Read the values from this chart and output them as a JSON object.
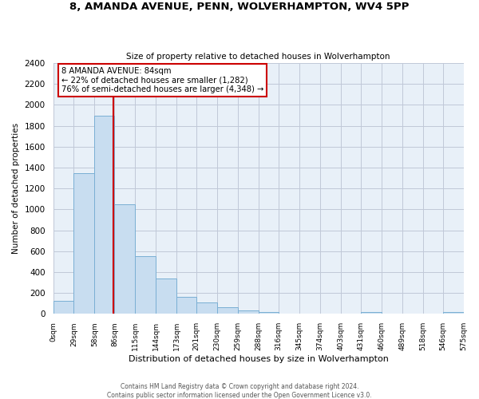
{
  "title": "8, AMANDA AVENUE, PENN, WOLVERHAMPTON, WV4 5PP",
  "subtitle": "Size of property relative to detached houses in Wolverhampton",
  "xlabel": "Distribution of detached houses by size in Wolverhampton",
  "ylabel": "Number of detached properties",
  "bar_color": "#c8ddf0",
  "bar_edge_color": "#7aafd4",
  "plot_bg_color": "#e8f0f8",
  "bin_edges": [
    0,
    29,
    58,
    86,
    115,
    144,
    173,
    201,
    230,
    259,
    288,
    316,
    345,
    374,
    403,
    431,
    460,
    489,
    518,
    546,
    575
  ],
  "bin_labels": [
    "0sqm",
    "29sqm",
    "58sqm",
    "86sqm",
    "115sqm",
    "144sqm",
    "173sqm",
    "201sqm",
    "230sqm",
    "259sqm",
    "288sqm",
    "316sqm",
    "345sqm",
    "374sqm",
    "403sqm",
    "431sqm",
    "460sqm",
    "489sqm",
    "518sqm",
    "546sqm",
    "575sqm"
  ],
  "bar_heights": [
    125,
    1350,
    1900,
    1050,
    550,
    335,
    165,
    110,
    60,
    30,
    15,
    5,
    5,
    0,
    0,
    15,
    0,
    0,
    0,
    15
  ],
  "vline_x": 84,
  "annotation_title": "8 AMANDA AVENUE: 84sqm",
  "annotation_line1": "← 22% of detached houses are smaller (1,282)",
  "annotation_line2": "76% of semi-detached houses are larger (4,348) →",
  "ylim": [
    0,
    2400
  ],
  "yticks": [
    0,
    200,
    400,
    600,
    800,
    1000,
    1200,
    1400,
    1600,
    1800,
    2000,
    2200,
    2400
  ],
  "footer_line1": "Contains HM Land Registry data © Crown copyright and database right 2024.",
  "footer_line2": "Contains public sector information licensed under the Open Government Licence v3.0.",
  "background_color": "#ffffff",
  "grid_color": "#c0c8d8",
  "vline_color": "#cc0000",
  "annotation_box_color": "#ffffff",
  "annotation_box_edge": "#cc0000"
}
